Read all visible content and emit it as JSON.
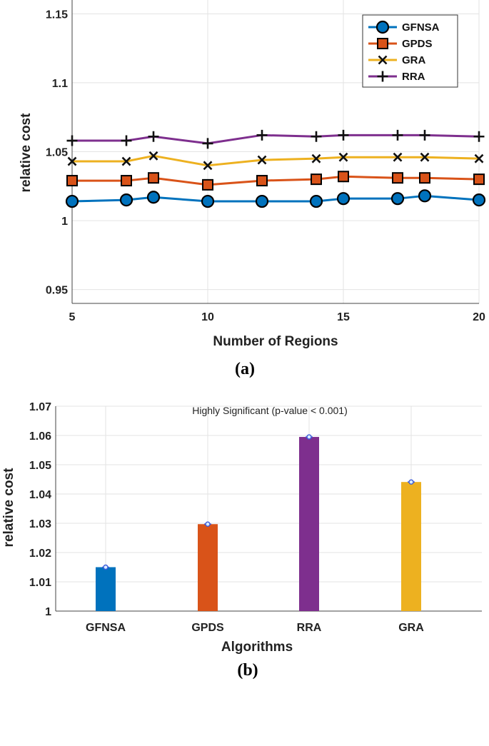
{
  "chart_data": [
    {
      "type": "line",
      "caption": "(a)",
      "xlabel": "Number of Regions",
      "ylabel": "relative cost",
      "xlim": [
        5,
        20
      ],
      "ylim": [
        0.94,
        1.16
      ],
      "xticks": [
        5,
        10,
        15,
        20
      ],
      "xtick_labels": [
        "5",
        "10",
        "15",
        "20"
      ],
      "yticks": [
        0.95,
        1.0,
        1.05,
        1.1,
        1.15
      ],
      "ytick_labels": [
        "0.95",
        "1",
        "1.05",
        "1.1",
        "1.15"
      ],
      "grid": true,
      "legend_position": "top-right",
      "x": [
        5,
        7,
        8,
        10,
        12,
        14,
        15,
        17,
        18,
        20
      ],
      "series": [
        {
          "name": "GFNSA",
          "color": "#0072BD",
          "marker": "circle",
          "values": [
            1.014,
            1.015,
            1.017,
            1.014,
            1.014,
            1.014,
            1.016,
            1.016,
            1.018,
            1.015
          ]
        },
        {
          "name": "GPDS",
          "color": "#D95319",
          "marker": "square",
          "values": [
            1.029,
            1.029,
            1.031,
            1.026,
            1.029,
            1.03,
            1.032,
            1.031,
            1.031,
            1.03
          ]
        },
        {
          "name": "GRA",
          "color": "#EDB120",
          "marker": "x",
          "values": [
            1.043,
            1.043,
            1.047,
            1.04,
            1.044,
            1.045,
            1.046,
            1.046,
            1.046,
            1.045
          ]
        },
        {
          "name": "RRA",
          "color": "#7E2F8E",
          "marker": "plus",
          "values": [
            1.058,
            1.058,
            1.061,
            1.056,
            1.062,
            1.061,
            1.062,
            1.062,
            1.062,
            1.061
          ]
        }
      ]
    },
    {
      "type": "bar",
      "caption": "(b)",
      "title": "Highly Significant (p-value < 0.001)",
      "xlabel": "Algorithms",
      "ylabel": "relative cost",
      "ylim": [
        1.0,
        1.07
      ],
      "yticks": [
        1.0,
        1.01,
        1.02,
        1.03,
        1.04,
        1.05,
        1.06,
        1.07
      ],
      "ytick_labels": [
        "1",
        "1.01",
        "1.02",
        "1.03",
        "1.04",
        "1.05",
        "1.06",
        "1.07"
      ],
      "grid": true,
      "categories": [
        "GFNSA",
        "GPDS",
        "RRA",
        "GRA"
      ],
      "values": [
        1.015,
        1.0297,
        1.0595,
        1.0441
      ],
      "colors": [
        "#0072BD",
        "#D95319",
        "#7E2F8E",
        "#EDB120"
      ]
    }
  ]
}
